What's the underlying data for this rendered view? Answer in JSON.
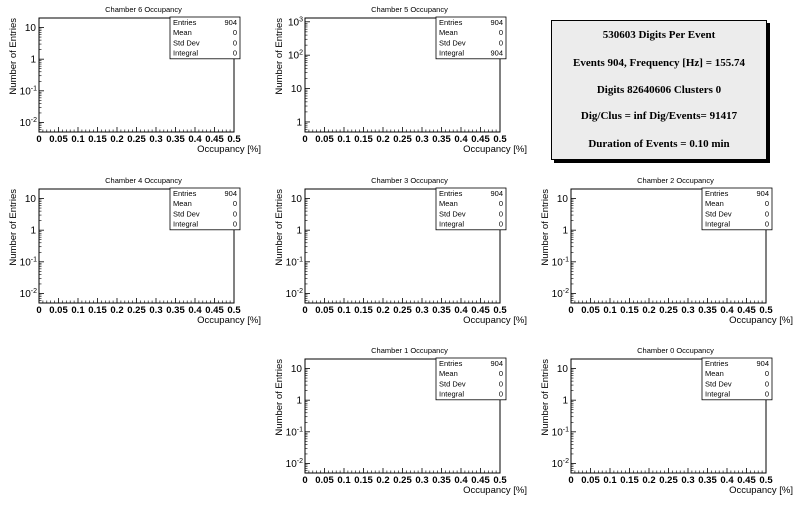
{
  "summary": {
    "line1": "530603 Digits Per Event",
    "line2": "Events 904, Frequency [Hz] = 155.74",
    "line3": "Digits 82640606 Clusters 0",
    "line4": "Dig/Clus = inf Dig/Events= 91417",
    "line5": "Duration of Events = 0.10 min"
  },
  "chart_data": [
    {
      "type": "histogram",
      "title": "Chamber 6 Occupancy",
      "xlabel": "Occupancy [%]",
      "ylabel": "Number of Entries",
      "xlim": [
        0,
        0.5
      ],
      "ylim": [
        0.005,
        20
      ],
      "yscale": "log",
      "xticks": [
        "0",
        "0.05",
        "0.1",
        "0.15",
        "0.2",
        "0.25",
        "0.3",
        "0.35",
        "0.4",
        "0.45",
        "0.5"
      ],
      "yticks": [
        {
          "base": "10",
          "exp": "-2",
          "value": 0.01
        },
        {
          "base": "10",
          "exp": "-1",
          "value": 0.1
        },
        {
          "base": "1",
          "exp": "",
          "value": 1
        },
        {
          "base": "10",
          "exp": "",
          "value": 10
        }
      ],
      "stats": [
        {
          "label": "Entries",
          "value": "904"
        },
        {
          "label": "Mean",
          "value": "0"
        },
        {
          "label": "Std Dev",
          "value": "0"
        },
        {
          "label": "Integral",
          "value": "0"
        }
      ]
    },
    {
      "type": "histogram",
      "title": "Chamber 5 Occupancy",
      "xlabel": "Occupancy [%]",
      "ylabel": "Number of Entries",
      "xlim": [
        0,
        0.5
      ],
      "ylim": [
        0.5,
        1300
      ],
      "yscale": "log",
      "xticks": [
        "0",
        "0.05",
        "0.1",
        "0.15",
        "0.2",
        "0.25",
        "0.3",
        "0.35",
        "0.4",
        "0.45",
        "0.5"
      ],
      "yticks": [
        {
          "base": "1",
          "exp": "",
          "value": 1
        },
        {
          "base": "10",
          "exp": "",
          "value": 10
        },
        {
          "base": "10",
          "exp": "2",
          "value": 100
        },
        {
          "base": "10",
          "exp": "3",
          "value": 1000
        }
      ],
      "stats": [
        {
          "label": "Entries",
          "value": "904"
        },
        {
          "label": "Mean",
          "value": "0"
        },
        {
          "label": "Std Dev",
          "value": "0"
        },
        {
          "label": "Integral",
          "value": "904"
        }
      ]
    },
    {
      "type": "histogram",
      "title": "Chamber 4 Occupancy",
      "xlabel": "Occupancy [%]",
      "ylabel": "Number of Entries",
      "xlim": [
        0,
        0.5
      ],
      "ylim": [
        0.005,
        20
      ],
      "yscale": "log",
      "xticks": [
        "0",
        "0.05",
        "0.1",
        "0.15",
        "0.2",
        "0.25",
        "0.3",
        "0.35",
        "0.4",
        "0.45",
        "0.5"
      ],
      "yticks": [
        {
          "base": "10",
          "exp": "-2",
          "value": 0.01
        },
        {
          "base": "10",
          "exp": "-1",
          "value": 0.1
        },
        {
          "base": "1",
          "exp": "",
          "value": 1
        },
        {
          "base": "10",
          "exp": "",
          "value": 10
        }
      ],
      "stats": [
        {
          "label": "Entries",
          "value": "904"
        },
        {
          "label": "Mean",
          "value": "0"
        },
        {
          "label": "Std Dev",
          "value": "0"
        },
        {
          "label": "Integral",
          "value": "0"
        }
      ]
    },
    {
      "type": "histogram",
      "title": "Chamber 3 Occupancy",
      "xlabel": "Occupancy [%]",
      "ylabel": "Number of Entries",
      "xlim": [
        0,
        0.5
      ],
      "ylim": [
        0.005,
        20
      ],
      "yscale": "log",
      "xticks": [
        "0",
        "0.05",
        "0.1",
        "0.15",
        "0.2",
        "0.25",
        "0.3",
        "0.35",
        "0.4",
        "0.45",
        "0.5"
      ],
      "yticks": [
        {
          "base": "10",
          "exp": "-2",
          "value": 0.01
        },
        {
          "base": "10",
          "exp": "-1",
          "value": 0.1
        },
        {
          "base": "1",
          "exp": "",
          "value": 1
        },
        {
          "base": "10",
          "exp": "",
          "value": 10
        }
      ],
      "stats": [
        {
          "label": "Entries",
          "value": "904"
        },
        {
          "label": "Mean",
          "value": "0"
        },
        {
          "label": "Std Dev",
          "value": "0"
        },
        {
          "label": "Integral",
          "value": "0"
        }
      ]
    },
    {
      "type": "histogram",
      "title": "Chamber 2 Occupancy",
      "xlabel": "Occupancy [%]",
      "ylabel": "Number of Entries",
      "xlim": [
        0,
        0.5
      ],
      "ylim": [
        0.005,
        20
      ],
      "yscale": "log",
      "xticks": [
        "0",
        "0.05",
        "0.1",
        "0.15",
        "0.2",
        "0.25",
        "0.3",
        "0.35",
        "0.4",
        "0.45",
        "0.5"
      ],
      "yticks": [
        {
          "base": "10",
          "exp": "-2",
          "value": 0.01
        },
        {
          "base": "10",
          "exp": "-1",
          "value": 0.1
        },
        {
          "base": "1",
          "exp": "",
          "value": 1
        },
        {
          "base": "10",
          "exp": "",
          "value": 10
        }
      ],
      "stats": [
        {
          "label": "Entries",
          "value": "904"
        },
        {
          "label": "Mean",
          "value": "0"
        },
        {
          "label": "Std Dev",
          "value": "0"
        },
        {
          "label": "Integral",
          "value": "0"
        }
      ]
    },
    {
      "type": "histogram",
      "title": "Chamber 1 Occupancy",
      "xlabel": "Occupancy [%]",
      "ylabel": "Number of Entries",
      "xlim": [
        0,
        0.5
      ],
      "ylim": [
        0.005,
        20
      ],
      "yscale": "log",
      "xticks": [
        "0",
        "0.05",
        "0.1",
        "0.15",
        "0.2",
        "0.25",
        "0.3",
        "0.35",
        "0.4",
        "0.45",
        "0.5"
      ],
      "yticks": [
        {
          "base": "10",
          "exp": "-2",
          "value": 0.01
        },
        {
          "base": "10",
          "exp": "-1",
          "value": 0.1
        },
        {
          "base": "1",
          "exp": "",
          "value": 1
        },
        {
          "base": "10",
          "exp": "",
          "value": 10
        }
      ],
      "stats": [
        {
          "label": "Entries",
          "value": "904"
        },
        {
          "label": "Mean",
          "value": "0"
        },
        {
          "label": "Std Dev",
          "value": "0"
        },
        {
          "label": "Integral",
          "value": "0"
        }
      ]
    },
    {
      "type": "histogram",
      "title": "Chamber 0 Occupancy",
      "xlabel": "Occupancy [%]",
      "ylabel": "Number of Entries",
      "xlim": [
        0,
        0.5
      ],
      "ylim": [
        0.005,
        20
      ],
      "yscale": "log",
      "xticks": [
        "0",
        "0.05",
        "0.1",
        "0.15",
        "0.2",
        "0.25",
        "0.3",
        "0.35",
        "0.4",
        "0.45",
        "0.5"
      ],
      "yticks": [
        {
          "base": "10",
          "exp": "-2",
          "value": 0.01
        },
        {
          "base": "10",
          "exp": "-1",
          "value": 0.1
        },
        {
          "base": "1",
          "exp": "",
          "value": 1
        },
        {
          "base": "10",
          "exp": "",
          "value": 10
        }
      ],
      "stats": [
        {
          "label": "Entries",
          "value": "904"
        },
        {
          "label": "Mean",
          "value": "0"
        },
        {
          "label": "Std Dev",
          "value": "0"
        },
        {
          "label": "Integral",
          "value": "0"
        }
      ]
    }
  ]
}
